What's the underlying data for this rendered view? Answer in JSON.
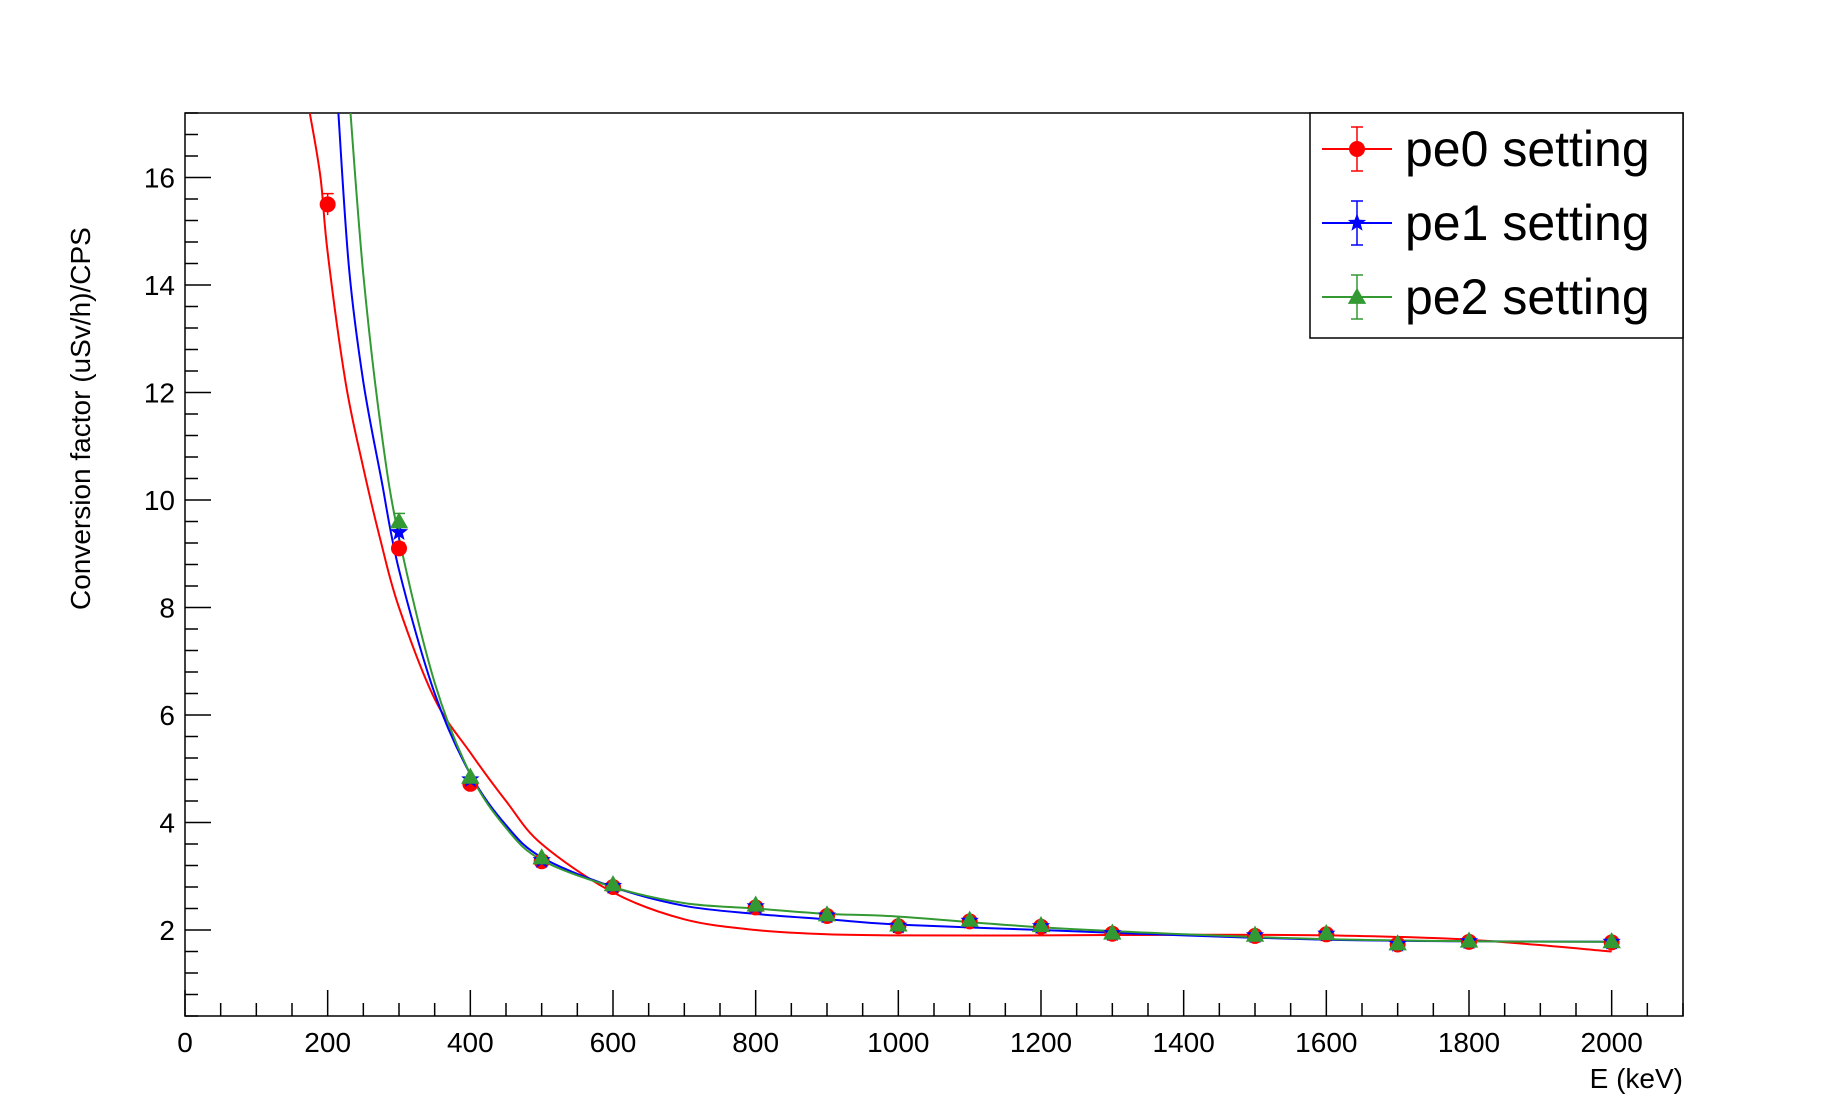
{
  "chart_data": {
    "type": "scatter",
    "xlabel": "E (keV)",
    "ylabel": "Conversion factor (uSv/h)/CPS",
    "xlim": [
      0,
      2100
    ],
    "ylim": [
      0.4,
      17.2
    ],
    "x_ticks": [
      0,
      200,
      400,
      600,
      800,
      1000,
      1200,
      1400,
      1600,
      1800,
      2000
    ],
    "y_ticks": [
      2,
      4,
      6,
      8,
      10,
      12,
      14,
      16
    ],
    "grid": false,
    "legend_position": "top-right",
    "series": [
      {
        "name": "pe0 setting",
        "color": "#ff0000",
        "marker": "circle",
        "points": [
          {
            "x": 200,
            "y": 15.5,
            "err": 0.2
          },
          {
            "x": 300,
            "y": 9.1,
            "err": 0.1
          },
          {
            "x": 400,
            "y": 4.72
          },
          {
            "x": 500,
            "y": 3.28
          },
          {
            "x": 600,
            "y": 2.8
          },
          {
            "x": 800,
            "y": 2.42
          },
          {
            "x": 900,
            "y": 2.26
          },
          {
            "x": 1000,
            "y": 2.07
          },
          {
            "x": 1100,
            "y": 2.16
          },
          {
            "x": 1200,
            "y": 2.06
          },
          {
            "x": 1300,
            "y": 1.93
          },
          {
            "x": 1500,
            "y": 1.89
          },
          {
            "x": 1600,
            "y": 1.92
          },
          {
            "x": 1700,
            "y": 1.73
          },
          {
            "x": 1800,
            "y": 1.78
          },
          {
            "x": 2000,
            "y": 1.77
          }
        ],
        "fit": {
          "x": [
            175,
            190,
            200,
            225,
            250,
            275,
            300,
            350,
            400,
            450,
            500,
            600,
            700,
            800,
            900,
            1000,
            1200,
            1400,
            1600,
            1800,
            2000
          ],
          "y": [
            17.2,
            16.0,
            14.6,
            12.2,
            10.6,
            9.2,
            8.0,
            6.3,
            5.3,
            4.4,
            3.6,
            2.7,
            2.2,
            2.0,
            1.92,
            1.9,
            1.9,
            1.91,
            1.9,
            1.82,
            1.6
          ]
        }
      },
      {
        "name": "pe1 setting",
        "color": "#0000ff",
        "marker": "star",
        "points": [
          {
            "x": 300,
            "y": 9.4,
            "err": 0.15
          },
          {
            "x": 400,
            "y": 4.8
          },
          {
            "x": 500,
            "y": 3.3
          },
          {
            "x": 600,
            "y": 2.82
          },
          {
            "x": 800,
            "y": 2.44
          },
          {
            "x": 900,
            "y": 2.27
          },
          {
            "x": 1000,
            "y": 2.08
          },
          {
            "x": 1100,
            "y": 2.17
          },
          {
            "x": 1200,
            "y": 2.07
          },
          {
            "x": 1300,
            "y": 1.94
          },
          {
            "x": 1500,
            "y": 1.9
          },
          {
            "x": 1600,
            "y": 1.93
          },
          {
            "x": 1700,
            "y": 1.74
          },
          {
            "x": 1800,
            "y": 1.79
          },
          {
            "x": 2000,
            "y": 1.78
          }
        ],
        "fit": {
          "x": [
            215,
            230,
            250,
            275,
            300,
            350,
            400,
            450,
            500,
            600,
            700,
            800,
            900,
            1000,
            1200,
            1400,
            1600,
            1800,
            2000
          ],
          "y": [
            17.2,
            14.3,
            12.2,
            10.4,
            8.7,
            6.4,
            4.9,
            3.95,
            3.35,
            2.8,
            2.45,
            2.3,
            2.2,
            2.1,
            2.0,
            1.9,
            1.82,
            1.79,
            1.78
          ]
        }
      },
      {
        "name": "pe2 setting",
        "color": "#339933",
        "marker": "triangle",
        "points": [
          {
            "x": 300,
            "y": 9.6,
            "err": 0.15
          },
          {
            "x": 400,
            "y": 4.85
          },
          {
            "x": 500,
            "y": 3.35
          },
          {
            "x": 600,
            "y": 2.85
          },
          {
            "x": 800,
            "y": 2.47
          },
          {
            "x": 900,
            "y": 2.29
          },
          {
            "x": 1000,
            "y": 2.1
          },
          {
            "x": 1100,
            "y": 2.19
          },
          {
            "x": 1200,
            "y": 2.09
          },
          {
            "x": 1300,
            "y": 1.95
          },
          {
            "x": 1500,
            "y": 1.91
          },
          {
            "x": 1600,
            "y": 1.94
          },
          {
            "x": 1700,
            "y": 1.75
          },
          {
            "x": 1800,
            "y": 1.8
          },
          {
            "x": 2000,
            "y": 1.79
          }
        ],
        "fit": {
          "x": [
            232,
            250,
            275,
            300,
            350,
            400,
            450,
            500,
            600,
            700,
            800,
            900,
            1000,
            1200,
            1400,
            1600,
            1800,
            2000
          ],
          "y": [
            17.2,
            14.2,
            11.3,
            9.3,
            6.6,
            4.9,
            3.9,
            3.3,
            2.8,
            2.5,
            2.4,
            2.3,
            2.25,
            2.05,
            1.92,
            1.83,
            1.79,
            1.78
          ]
        }
      }
    ]
  }
}
